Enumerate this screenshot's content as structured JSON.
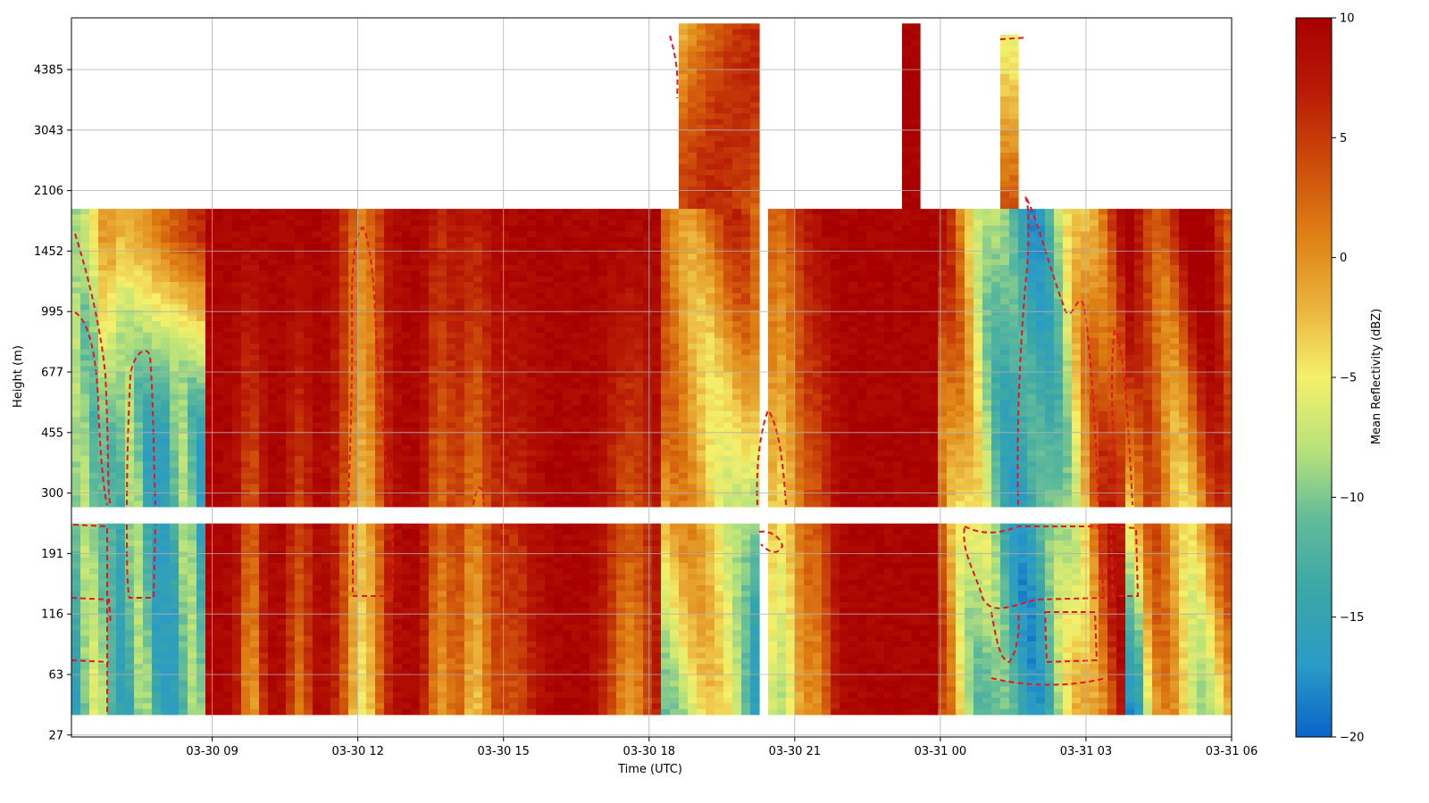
{
  "chart_data": {
    "type": "heatmap",
    "title": "",
    "xlabel": "Time (UTC)",
    "ylabel": "Height (m)",
    "x_ticks": [
      "03-30 09",
      "03-30 12",
      "03-30 15",
      "03-30 18",
      "03-30 21",
      "03-31 00",
      "03-31 03",
      "03-31 06"
    ],
    "x_tick_hours": [
      9,
      12,
      15,
      18,
      21,
      24,
      27,
      30
    ],
    "x_range_hours": [
      6.1,
      30.0
    ],
    "y_ticks": [
      "27",
      "63",
      "116",
      "191",
      "300",
      "455",
      "677",
      "995",
      "1452",
      "2106",
      "3043",
      "4385"
    ],
    "colorbar": {
      "label": "Mean Reflectivity (dBZ)",
      "ticks": [
        "10",
        "5",
        "0",
        "−5",
        "−10",
        "−15",
        "−20"
      ],
      "range": [
        -20,
        10
      ],
      "colormap": [
        "#0a64c8",
        "#2a9bc6",
        "#3aa6a8",
        "#60bb9a",
        "#b8e27a",
        "#f4f06a",
        "#eab23a",
        "#de7f14",
        "#cc4a0a",
        "#b81a05",
        "#a80000"
      ]
    },
    "grid": true,
    "missing_value_color": "#ffffff",
    "contour": {
      "style": "dashed",
      "color": "#e8141e",
      "level_dBZ": -15
    },
    "summary": [
      {
        "period": "03-30 06–09",
        "low_level_dBZ": -15,
        "upper_level_dBZ": 10,
        "top_m": 1800
      },
      {
        "period": "03-30 09–18",
        "low_level_dBZ": 5,
        "upper_level_dBZ": 10,
        "top_m": 1800
      },
      {
        "period": "03-30 18–20",
        "low_level_dBZ": -2,
        "upper_level_dBZ": 2,
        "top_m": 5400
      },
      {
        "period": "03-30 20–21",
        "low_level_dBZ": -12,
        "upper_level_dBZ": -8,
        "top_m": 1800
      },
      {
        "period": "03-30 21–03-31 00",
        "low_level_dBZ": 10,
        "upper_level_dBZ": 10,
        "top_m": 1800
      },
      {
        "period": "03-30 23:30",
        "low_level_dBZ": 10,
        "upper_level_dBZ": 10,
        "top_m": 5400
      },
      {
        "period": "03-31 01–04",
        "low_level_dBZ": -15,
        "upper_level_dBZ": -15,
        "top_m": 5200
      },
      {
        "period": "03-31 04–06",
        "low_level_dBZ": -8,
        "upper_level_dBZ": 8,
        "top_m": 1800
      }
    ]
  }
}
